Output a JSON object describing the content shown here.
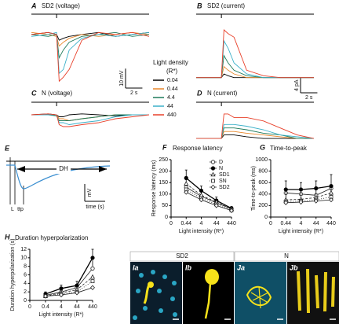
{
  "traces": {
    "legend_title": "Light density",
    "legend_unit": "(R*)",
    "levels": [
      {
        "name": "0.04",
        "color": "#000000"
      },
      {
        "name": "0.44",
        "color": "#e8872a"
      },
      {
        "name": "4.4",
        "color": "#1f7a5a"
      },
      {
        "name": "44",
        "color": "#3ab0c8"
      },
      {
        "name": "440",
        "color": "#e8402a"
      }
    ]
  },
  "schematic": {
    "label": "E",
    "dh": "DH",
    "ylabel": "mV",
    "xlabel": "time (s)",
    "latency": "L",
    "ttp": "ttp"
  },
  "images": {
    "sd2": "SD2",
    "n": "N",
    "ia": "Ia",
    "ib": "Ib",
    "ja": "Ja",
    "jb": "Jb"
  },
  "chart_data": [
    {
      "type": "trace",
      "label": "A",
      "title": "SD2 (voltage)",
      "stimulus": 3,
      "xlim": [
        0,
        14
      ],
      "ylim": [
        -30,
        8
      ],
      "x": [
        0,
        2,
        3,
        3.3,
        3.8,
        4.5,
        6,
        8,
        10,
        12,
        14
      ],
      "series": [
        {
          "values": [
            0,
            1,
            0,
            -3,
            -2,
            -1,
            0,
            1,
            -1,
            0,
            1
          ]
        },
        {
          "values": [
            1,
            0,
            -1,
            -6,
            -4,
            -2,
            0,
            -1,
            0,
            1,
            0
          ]
        },
        {
          "values": [
            0,
            -1,
            0,
            -12,
            -8,
            -4,
            -1,
            0,
            1,
            -1,
            0
          ]
        },
        {
          "values": [
            -1,
            0,
            1,
            -20,
            -18,
            -8,
            -2,
            0,
            -1,
            0,
            1
          ]
        },
        {
          "values": [
            0,
            1,
            0,
            -24,
            -22,
            -18,
            -3,
            1,
            0,
            1,
            -1
          ]
        }
      ],
      "scale_bar": {
        "x": {
          "value": 2,
          "label": "2 s"
        },
        "y": {
          "value": 10,
          "label": "10 mV"
        }
      }
    },
    {
      "type": "trace",
      "label": "B",
      "title": "SD2 (current)",
      "stimulus": 3,
      "xlim": [
        0,
        14
      ],
      "ylim": [
        -2,
        16
      ],
      "x": [
        0,
        2,
        3,
        3.3,
        3.8,
        4.5,
        6,
        8,
        10,
        12,
        14
      ],
      "series": [
        {
          "values": [
            0,
            0,
            0,
            1,
            0.5,
            0,
            0,
            0,
            0,
            0,
            0
          ]
        },
        {
          "values": [
            0,
            0,
            0,
            3,
            2,
            1,
            0,
            0,
            0,
            0,
            0
          ]
        },
        {
          "values": [
            0,
            0,
            0,
            6,
            4,
            2,
            0.5,
            0,
            0,
            0,
            0
          ]
        },
        {
          "values": [
            0,
            0,
            0,
            10,
            8,
            4,
            1,
            0,
            0,
            0,
            0
          ]
        },
        {
          "values": [
            0,
            0,
            0,
            13,
            12,
            11,
            2,
            0.5,
            0,
            0,
            0
          ]
        }
      ],
      "scale_bar": {
        "x": {
          "value": 2,
          "label": "2 s"
        },
        "y": {
          "value": 4,
          "label": "4 pA"
        }
      }
    },
    {
      "type": "trace",
      "label": "C",
      "title": "N (voltage)",
      "stimulus": 3,
      "xlim": [
        0,
        14
      ],
      "ylim": [
        -8,
        4
      ],
      "x": [
        0,
        2,
        3,
        3.3,
        3.8,
        4.5,
        6,
        8,
        10,
        12,
        14
      ],
      "series": [
        {
          "values": [
            0,
            0.5,
            0,
            -1,
            -1,
            0,
            0.5,
            0,
            -0.5,
            0,
            0
          ]
        },
        {
          "values": [
            0,
            0,
            0,
            -2,
            -2,
            -3,
            -2,
            -1,
            0,
            0,
            0
          ]
        },
        {
          "values": [
            0,
            0,
            -0.5,
            -3,
            -3,
            -3,
            -2,
            -1,
            0,
            0,
            0
          ]
        },
        {
          "values": [
            0,
            0,
            0,
            -4,
            -4,
            -5,
            -4,
            -3,
            -1,
            0,
            0
          ]
        },
        {
          "values": [
            0,
            0.5,
            0,
            -5,
            -6,
            -6,
            -5,
            -4,
            -2,
            -1,
            0
          ]
        }
      ]
    },
    {
      "type": "trace",
      "label": "D",
      "title": "N (current)",
      "stimulus": 3,
      "xlim": [
        0,
        14
      ],
      "ylim": [
        -2,
        9
      ],
      "x": [
        0,
        2,
        3,
        3.3,
        3.8,
        4.5,
        6,
        8,
        10,
        12,
        14
      ],
      "series": [
        {
          "values": [
            0,
            0,
            0,
            1,
            1,
            1,
            0.5,
            0,
            0,
            0,
            0
          ]
        },
        {
          "values": [
            0,
            0,
            0,
            2,
            2,
            2,
            1.5,
            1,
            0.5,
            0,
            0
          ]
        },
        {
          "values": [
            0,
            0,
            0,
            3,
            3,
            3,
            2.5,
            1.5,
            1,
            0,
            0
          ]
        },
        {
          "values": [
            0,
            0,
            0,
            4,
            4,
            4,
            3.5,
            2.5,
            1,
            0.5,
            0
          ]
        },
        {
          "values": [
            0,
            0,
            0,
            7,
            7,
            6,
            6,
            5,
            3,
            1,
            0
          ]
        }
      ]
    },
    {
      "type": "line",
      "label": "F",
      "title": "Response latency",
      "xlabel": "Light intensity (R*)",
      "ylabel": "Response latency (ms)",
      "categories": [
        "0",
        "0.44",
        "4",
        "44",
        "440"
      ],
      "ylim": [
        0,
        250
      ],
      "yticks": [
        0,
        50,
        100,
        150,
        200,
        250
      ],
      "legend": "upper right",
      "series": [
        {
          "name": "D",
          "color": "#222222",
          "marker": "circle-open",
          "dash": "none",
          "values": [
            null,
            130,
            90,
            62,
            35
          ]
        },
        {
          "name": "N",
          "color": "#000000",
          "marker": "circle-filled",
          "dash": "none",
          "values": [
            null,
            170,
            115,
            72,
            38
          ],
          "errors": [
            null,
            35,
            20,
            15,
            8
          ]
        },
        {
          "name": "SD1",
          "color": "#222222",
          "marker": "triangle-open",
          "dash": "3,2",
          "values": [
            null,
            145,
            95,
            65,
            35
          ]
        },
        {
          "name": "SN",
          "color": "#222222",
          "marker": "square-open",
          "dash": "1,2",
          "values": [
            null,
            120,
            82,
            55,
            30
          ]
        },
        {
          "name": "SD2",
          "color": "#222222",
          "marker": "diamond-open",
          "dash": "none",
          "values": [
            null,
            108,
            75,
            50,
            28
          ]
        }
      ]
    },
    {
      "type": "line",
      "label": "G",
      "title": "Time-to-peak",
      "xlabel": "Light intensity (R*)",
      "ylabel": "Time-to-peak (ms)",
      "categories": [
        "0",
        "0.44",
        "4",
        "44",
        "440"
      ],
      "ylim": [
        0,
        1000
      ],
      "yticks": [
        0,
        200,
        400,
        600,
        800,
        1000
      ],
      "series": [
        {
          "name": "D",
          "color": "#222222",
          "marker": "circle-open",
          "dash": "none",
          "values": [
            null,
            420,
            400,
            380,
            500
          ]
        },
        {
          "name": "N",
          "color": "#000000",
          "marker": "circle-filled",
          "dash": "none",
          "values": [
            null,
            480,
            480,
            500,
            540
          ],
          "errors": [
            null,
            150,
            120,
            130,
            200
          ]
        },
        {
          "name": "SD1",
          "color": "#222222",
          "marker": "triangle-open",
          "dash": "3,2",
          "values": [
            null,
            300,
            310,
            340,
            420
          ]
        },
        {
          "name": "SN",
          "color": "#222222",
          "marker": "square-open",
          "dash": "1,2",
          "values": [
            null,
            270,
            280,
            300,
            350
          ]
        },
        {
          "name": "SD2",
          "color": "#222222",
          "marker": "diamond-open",
          "dash": "none",
          "values": [
            null,
            250,
            260,
            280,
            300
          ]
        }
      ]
    },
    {
      "type": "line",
      "label": "H",
      "title": "Duration hyperpolarization",
      "xlabel": "Light intensity (R*)",
      "ylabel": "Duration hyperpolarization (s)",
      "categories": [
        "0",
        "0.4",
        "4",
        "44",
        "440"
      ],
      "ylim": [
        0,
        12
      ],
      "yticks": [
        0,
        2,
        4,
        6,
        8,
        10,
        12
      ],
      "series": [
        {
          "name": "D",
          "color": "#222222",
          "marker": "circle-open",
          "dash": "none",
          "values": [
            null,
            1.2,
            2.0,
            3.0,
            7.5
          ]
        },
        {
          "name": "N",
          "color": "#000000",
          "marker": "circle-filled",
          "dash": "none",
          "values": [
            null,
            1.5,
            2.8,
            3.5,
            10
          ],
          "errors": [
            null,
            0.5,
            0.8,
            1.0,
            2.0
          ]
        },
        {
          "name": "SD1",
          "color": "#222222",
          "marker": "triangle-open",
          "dash": "3,2",
          "values": [
            null,
            1.0,
            1.8,
            2.5,
            5.5
          ]
        },
        {
          "name": "SN",
          "color": "#222222",
          "marker": "square-open",
          "dash": "1,2",
          "values": [
            null,
            1.0,
            1.5,
            2.0,
            4.5
          ]
        },
        {
          "name": "SD2",
          "color": "#222222",
          "marker": "diamond-open",
          "dash": "none",
          "values": [
            null,
            1.0,
            1.3,
            1.8,
            3.0
          ]
        }
      ]
    }
  ]
}
